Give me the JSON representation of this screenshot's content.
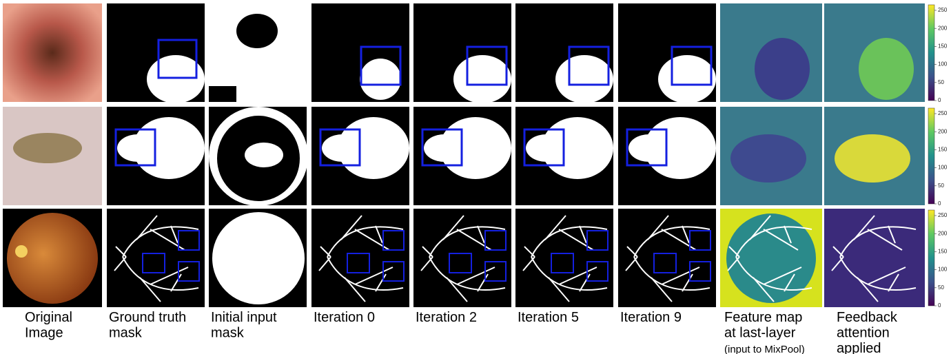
{
  "columns": [
    {
      "lines": [
        "Original",
        "Image"
      ]
    },
    {
      "lines": [
        "Ground truth",
        "mask"
      ]
    },
    {
      "lines": [
        "Initial input",
        "mask"
      ]
    },
    {
      "lines": [
        "Iteration 0"
      ]
    },
    {
      "lines": [
        "Iteration 2"
      ]
    },
    {
      "lines": [
        "Iteration 5"
      ]
    },
    {
      "lines": [
        "Iteration 9"
      ]
    },
    {
      "lines": [
        "Feature map",
        "at last-layer",
        "(input to MixPool)"
      ]
    },
    {
      "lines": [
        "Feedback",
        "attention",
        "applied"
      ]
    }
  ],
  "colorbars": [
    {
      "ticks": [
        0,
        50,
        100,
        150,
        200,
        250
      ]
    },
    {
      "ticks": [
        0,
        50,
        100,
        150,
        200,
        250
      ]
    },
    {
      "ticks": [
        0,
        50,
        100,
        150,
        200,
        250
      ]
    }
  ]
}
